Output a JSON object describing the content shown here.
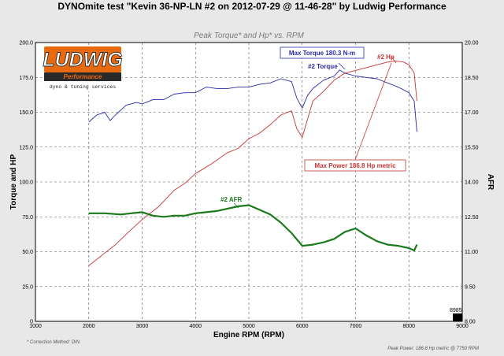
{
  "title": "DYNOmite test \"Kevin 36-NP-LN #2 on 2012-07-29 @ 11-46-28\" by Ludwig Performance",
  "logo": {
    "brand": "LUDWIG",
    "sub1": "Performance",
    "sub2": "dyno & tuning services"
  },
  "footer": {
    "left": "* Correction Method: DIN",
    "right": "Peak Power: 186.8 Hp metric @ 7750 RPM"
  },
  "chart_data": {
    "type": "line",
    "title": "Peak Torque* and Hp* vs. RPM",
    "xlabel": "Engine RPM (RPM)",
    "ylabel": "Torque and HP",
    "y2label": "AFR",
    "xlim": [
      1000,
      9000
    ],
    "ylim": [
      0,
      200
    ],
    "y2lim": [
      8.0,
      20.0
    ],
    "xticks": [
      "1000",
      "2000",
      "3000",
      "4000",
      "5000",
      "6000",
      "7000",
      "8000",
      "9000"
    ],
    "yticks": [
      "0",
      "25.0",
      "50.0",
      "75.0",
      "100.0",
      "125.0",
      "150.0",
      "175.0",
      "200.0"
    ],
    "y2ticks": [
      "8.00",
      "9.50",
      "11.00",
      "12.50",
      "14.00",
      "15.50",
      "17.00",
      "18.50",
      "20.00"
    ],
    "grid": true,
    "series": [
      {
        "name": "#2 Torque",
        "axis": "left",
        "color": "#2a2aa8",
        "x": [
          2000,
          2150,
          2300,
          2400,
          2500,
          2700,
          2900,
          3000,
          3200,
          3400,
          3600,
          3800,
          4000,
          4200,
          4400,
          4600,
          4800,
          5000,
          5200,
          5400,
          5600,
          5800,
          5900,
          6000,
          6100,
          6200,
          6400,
          6600,
          6700,
          6800,
          7000,
          7200,
          7400,
          7600,
          7800,
          8000,
          8100,
          8150
        ],
        "y": [
          143,
          148,
          150,
          144,
          148,
          155,
          157,
          156,
          159,
          159,
          163,
          164,
          164,
          168,
          167,
          167,
          168,
          168,
          170,
          171,
          174,
          172,
          160,
          153,
          162,
          167,
          173,
          176,
          180.3,
          178,
          176,
          175,
          174,
          171,
          168,
          164,
          158,
          136
        ]
      },
      {
        "name": "#2 Hp",
        "axis": "left",
        "color": "#c83434",
        "x": [
          2000,
          2200,
          2500,
          2800,
          3000,
          3300,
          3600,
          3800,
          4000,
          4300,
          4600,
          4800,
          5000,
          5200,
          5400,
          5600,
          5800,
          5900,
          6000,
          6200,
          6400,
          6600,
          6800,
          7000,
          7200,
          7400,
          7600,
          7750,
          7900,
          8000,
          8100,
          8150
        ],
        "y": [
          40,
          46,
          55,
          66,
          73,
          82,
          94,
          99,
          106,
          113,
          121,
          124,
          131,
          135,
          141,
          148,
          151,
          138,
          132,
          158,
          165,
          173,
          178,
          180,
          182,
          184,
          186,
          186.8,
          186,
          184,
          178,
          158
        ]
      },
      {
        "name": "#2 AFR",
        "axis": "right",
        "color": "#1a7a1a",
        "x": [
          2000,
          2300,
          2600,
          2800,
          3000,
          3200,
          3400,
          3600,
          3800,
          4000,
          4200,
          4400,
          4600,
          4800,
          5000,
          5200,
          5400,
          5600,
          5800,
          6000,
          6200,
          6400,
          6600,
          6800,
          7000,
          7200,
          7400,
          7600,
          7800,
          8000,
          8100,
          8150
        ],
        "y": [
          12.65,
          12.65,
          12.6,
          12.65,
          12.7,
          12.55,
          12.5,
          12.55,
          12.55,
          12.65,
          12.7,
          12.75,
          12.85,
          12.95,
          13.0,
          12.8,
          12.6,
          12.25,
          11.8,
          11.25,
          11.3,
          11.4,
          11.55,
          11.85,
          12.0,
          11.7,
          11.45,
          11.3,
          11.25,
          11.15,
          11.05,
          11.3
        ]
      }
    ],
    "annotations": [
      {
        "text": "Max Torque 180.3 N-m",
        "color": "#2a2aa8"
      },
      {
        "text": "#2 Torque",
        "color": "#2a2aa8"
      },
      {
        "text": "#2 Hp",
        "color": "#c83434"
      },
      {
        "text": "Max Power 186.8 Hp metric",
        "color": "#c83434"
      },
      {
        "text": "#2 AFR",
        "color": "#1a7a1a"
      },
      {
        "text": "8985",
        "color": "#000000"
      }
    ]
  }
}
